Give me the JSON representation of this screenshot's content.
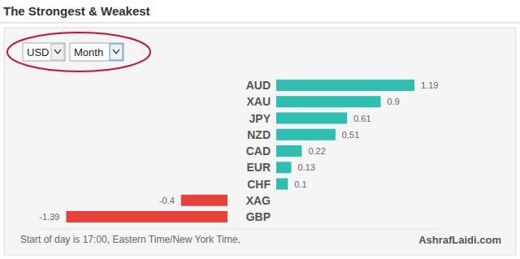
{
  "chart_data": {
    "type": "bar",
    "title": "The Strongest & Weakest",
    "orientation": "horizontal",
    "categories": [
      "AUD",
      "XAU",
      "JPY",
      "NZD",
      "CAD",
      "EUR",
      "CHF",
      "XAG",
      "GBP"
    ],
    "values": [
      1.19,
      0.9,
      0.61,
      0.51,
      0.22,
      0.13,
      0.1,
      -0.4,
      -1.39
    ],
    "colors": [
      "#2fbfb0",
      "#2fbfb0",
      "#2fbfb0",
      "#2fbfb0",
      "#2fbfb0",
      "#2fbfb0",
      "#2fbfb0",
      "#e8413b",
      "#e8413b"
    ],
    "xlim": [
      -1.6,
      1.4
    ],
    "xticks": [],
    "tick_labels": false,
    "grid": false,
    "data_labels": true
  },
  "controls": {
    "currency": "USD",
    "period": "Month"
  },
  "footer": {
    "note": "Start of day is 17:00, Eastern Time/New York Time,",
    "brand": "AshrafLaidi.com"
  }
}
